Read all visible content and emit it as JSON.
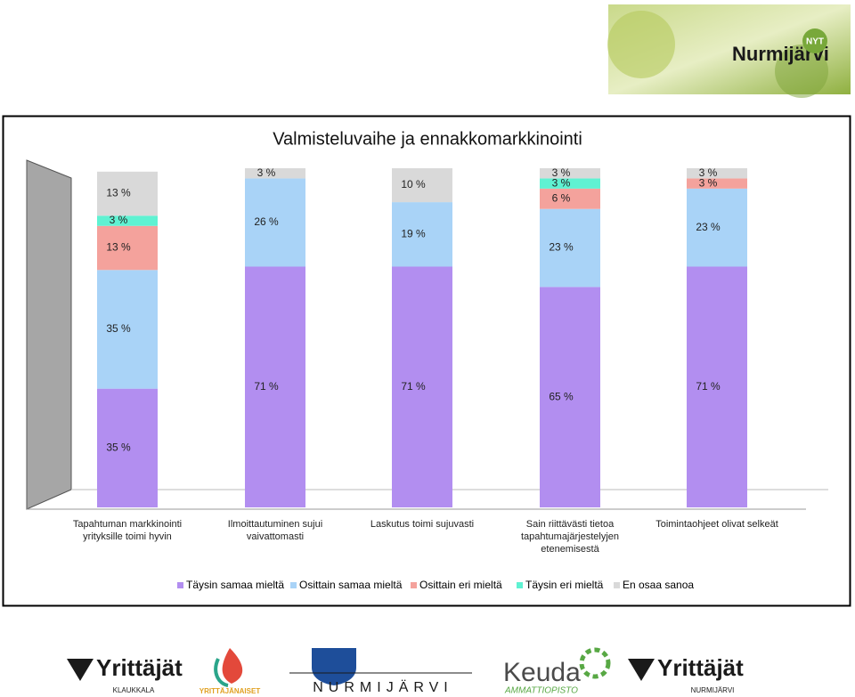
{
  "chart_data": {
    "type": "stacked_bar",
    "title": "Valmisteluvaihe ja ennakkomarkkinointi",
    "categories": [
      "Tapahtuman markkinointi yrityksille toimi hyvin",
      "Ilmoittautuminen sujui vaivattomasti",
      "Laskutus toimi sujuvasti",
      "Sain riittävästi tietoa tapahtumajärjestelyjen etenemisestä",
      "Toimintaohjeet olivat selkeät"
    ],
    "ylim": [
      0,
      100
    ],
    "series": [
      {
        "name": "Täysin samaa mieltä",
        "color": "#b28ef0",
        "values": [
          35,
          71,
          71,
          65,
          71
        ],
        "value_labels": [
          "35 %",
          "71 %",
          "71 %",
          "65 %",
          "71 %"
        ]
      },
      {
        "name": "Osittain samaa mieltä",
        "color": "#a9d3f7",
        "values": [
          35,
          26,
          19,
          23,
          23
        ],
        "value_labels": [
          "35 %",
          "26 %",
          "19 %",
          "23 %",
          "23 %"
        ]
      },
      {
        "name": "Osittain  eri mieltä",
        "color": "#f4a29c",
        "values": [
          13,
          null,
          null,
          6,
          3
        ],
        "value_labels": [
          "13 %",
          null,
          null,
          "6 %",
          "3 %"
        ]
      },
      {
        "name": "Täysin eri mieltä",
        "color": "#5ff2d2",
        "values": [
          3,
          null,
          null,
          3,
          null
        ],
        "value_labels": [
          "3 %",
          null,
          null,
          "3 %",
          null
        ]
      },
      {
        "name": "En osaa sanoa",
        "color": "#d9d9d9",
        "values": [
          13,
          3,
          10,
          3,
          3
        ],
        "value_labels": [
          "13 %",
          "3 %",
          "10 %",
          "3 %",
          "3 %"
        ]
      }
    ]
  },
  "logos": {
    "top": [
      "Nurmijärvi",
      "NYT"
    ],
    "yrittajat_1": [
      "Yrittäjät",
      "KLAUKKALA"
    ],
    "naiset": "YRITTÄJÄNAISET",
    "kunta": "NURMIJÄRVI",
    "keuda": [
      "Keuda",
      "AMMATTIOPISTO"
    ],
    "yrittajat_2": [
      "Yrittäjät",
      "NURMIJÄRVI"
    ]
  }
}
